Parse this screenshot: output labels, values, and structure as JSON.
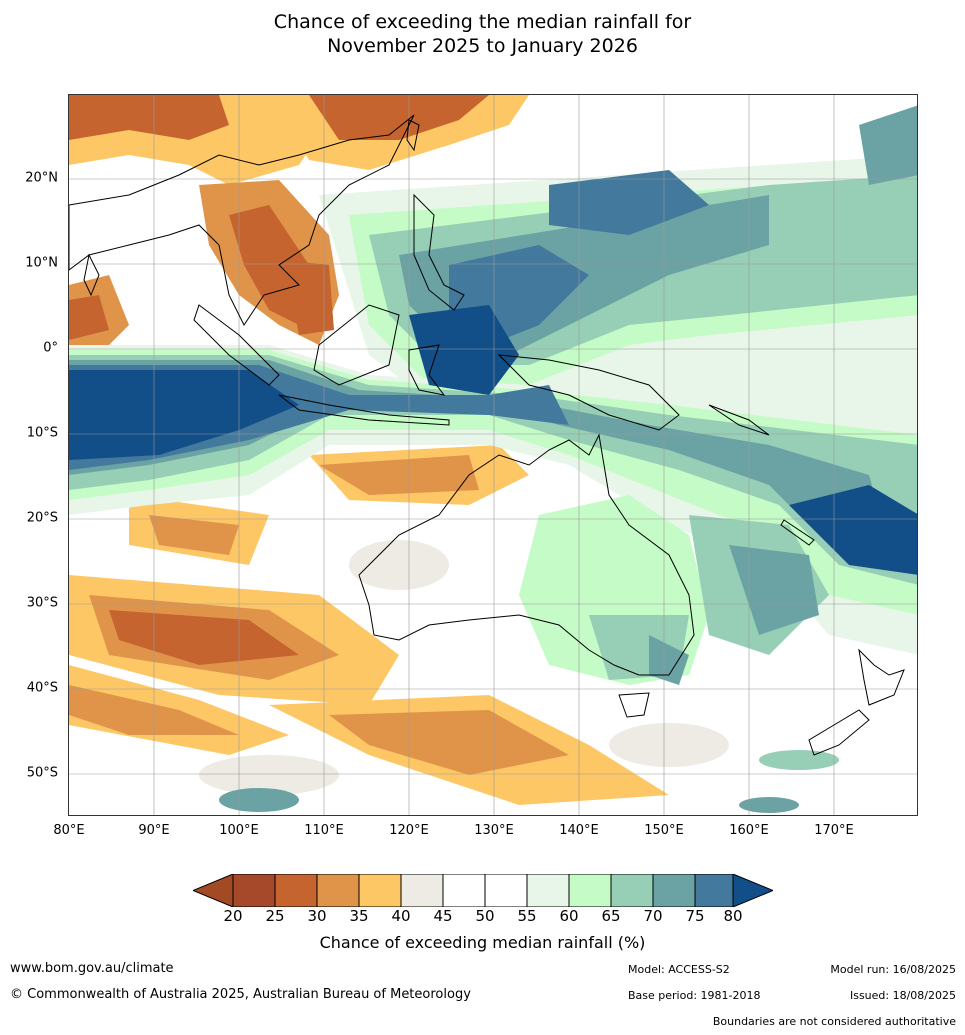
{
  "title": {
    "line1": "Chance of exceeding the median rainfall for",
    "line2": "November 2025 to January 2026"
  },
  "map": {
    "lat_labels": [
      "20°N",
      "10°N",
      "0°",
      "10°S",
      "20°S",
      "30°S",
      "40°S",
      "50°S"
    ],
    "lon_labels": [
      "80°E",
      "90°E",
      "100°E",
      "110°E",
      "120°E",
      "130°E",
      "140°E",
      "150°E",
      "160°E",
      "170°E"
    ]
  },
  "legend": {
    "ticks": [
      "20",
      "25",
      "30",
      "35",
      "40",
      "45",
      "50",
      "55",
      "60",
      "65",
      "70",
      "75",
      "80"
    ],
    "colors": [
      "#a14a24",
      "#a6492a",
      "#c5642f",
      "#e0944a",
      "#fec765",
      "#eeeae4",
      "#ffffff",
      "#ffffff",
      "#e7f6e8",
      "#c5fbc6",
      "#97ceb6",
      "#6ba3a4",
      "#43799d",
      "#124e88"
    ],
    "label": "Chance of exceeding median rainfall (%)"
  },
  "footer": {
    "website": "www.bom.gov.au/climate",
    "copyright": "© Commonwealth of Australia 2025, Australian Bureau of Meteorology",
    "model": "Model: ACCESS-S2",
    "base_period": "Base period: 1981-2018",
    "model_run": "Model run: 16/08/2025",
    "issued": "Issued: 18/08/2025",
    "boundaries_note": "Boundaries are not considered authoritative"
  }
}
